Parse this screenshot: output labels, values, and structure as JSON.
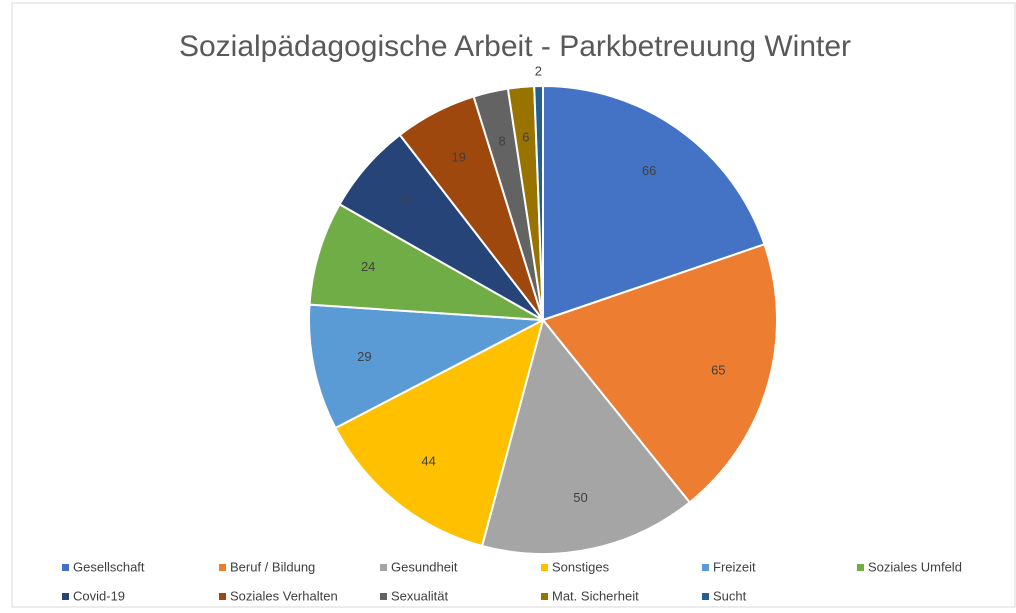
{
  "chart_data": {
    "type": "pie",
    "title": "Sozialpädagogische Arbeit - Parkbetreuung Winter",
    "categories": [
      "Gesellschaft",
      "Beruf / Bildung",
      "Gesundheit",
      "Sonstiges",
      "Freizeit",
      "Soziales Umfeld",
      "Covid-19",
      "Soziales Verhalten",
      "Sexualität",
      "Mat. Sicherheit",
      "Sucht"
    ],
    "values": [
      66,
      65,
      50,
      44,
      29,
      24,
      21,
      19,
      8,
      6,
      2
    ],
    "colors": [
      "#4472c4",
      "#ed7d31",
      "#a5a5a5",
      "#ffc000",
      "#5b9bd5",
      "#70ad47",
      "#264478",
      "#9e480e",
      "#636363",
      "#997300",
      "#255e91"
    ],
    "legend": "bottom"
  }
}
